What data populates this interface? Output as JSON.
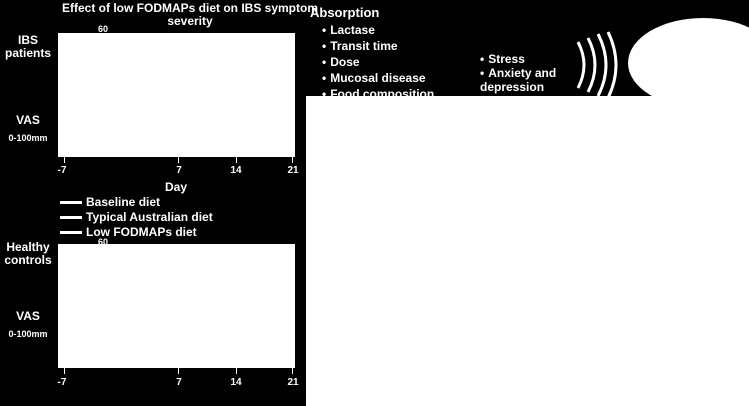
{
  "chart1": {
    "title": "Effect of low FODMAPs diet on IBS symptom severity",
    "group_label": "IBS patients",
    "ylabel": "VAS",
    "yunit": "0-100mm",
    "xlabel": "Day",
    "xticks": [
      "-7",
      "7",
      "14",
      "21"
    ],
    "top_value_snippet": "60"
  },
  "legend": {
    "items": [
      "Baseline diet",
      "Typical Australian diet",
      "Low FODMAPs diet"
    ]
  },
  "chart2": {
    "group_label": "Healthy controls",
    "ylabel": "VAS",
    "yunit": "0-100mm",
    "xticks": [
      "-7",
      "7",
      "14",
      "21"
    ],
    "top_value_snippet": "60"
  },
  "absorption": {
    "heading": "Absorption",
    "items": [
      "Lactase",
      "Transit time",
      "Dose",
      "Mucosal disease",
      "Food composition"
    ]
  },
  "psych": {
    "items": [
      "Stress",
      "Anxiety and depression"
    ]
  },
  "colors": {
    "background": "#000000",
    "foreground": "#ffffff"
  }
}
